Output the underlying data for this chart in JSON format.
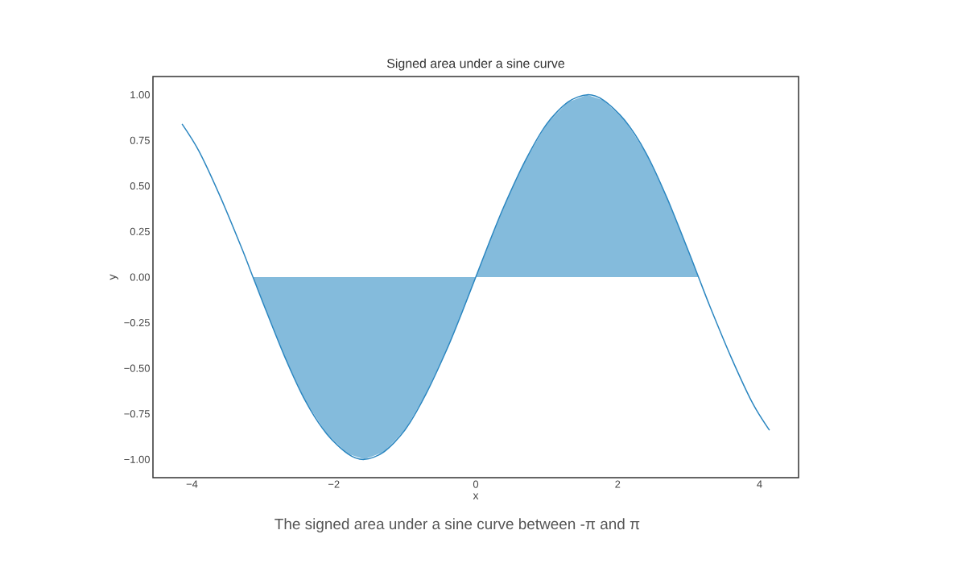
{
  "chart_data": {
    "type": "line",
    "title": "Signed area under a sine curve",
    "xlabel": "x",
    "ylabel": "y",
    "xlim": [
      -4.55,
      4.55
    ],
    "ylim": [
      -1.1,
      1.1
    ],
    "xticks": [
      {
        "value": -4,
        "label": "−4"
      },
      {
        "value": -2,
        "label": "−2"
      },
      0,
      2,
      4
    ],
    "yticks": [
      {
        "value": -1,
        "label": "−1.00"
      },
      {
        "value": -0.75,
        "label": "−0.75"
      },
      {
        "value": -0.5,
        "label": "−0.50"
      },
      {
        "value": -0.25,
        "label": "−0.25"
      },
      {
        "value": 0,
        "label": "0.00"
      },
      {
        "value": 0.25,
        "label": "0.25"
      },
      {
        "value": 0.5,
        "label": "0.50"
      },
      {
        "value": 0.75,
        "label": "0.75"
      },
      {
        "value": 1,
        "label": "1.00"
      }
    ],
    "grid": false,
    "annotations": [
      "The signed area under a sine curve between -π and π"
    ],
    "series": [
      {
        "type": "area",
        "color": "#84bbdc",
        "x": [
          -3.14,
          -3.0,
          -2.7,
          -2.4,
          -2.1,
          -1.8,
          -1.57,
          -1.3,
          -1.0,
          -0.7,
          -0.4,
          -0.2,
          0,
          0.2,
          0.4,
          0.7,
          1.0,
          1.3,
          1.57,
          1.8,
          2.1,
          2.4,
          2.7,
          3.0,
          3.14
        ],
        "values": [
          0,
          -0.14,
          -0.43,
          -0.68,
          -0.86,
          -0.97,
          -1.0,
          -0.96,
          -0.84,
          -0.64,
          -0.39,
          -0.2,
          0,
          0.2,
          0.39,
          0.64,
          0.84,
          0.96,
          1.0,
          0.97,
          0.86,
          0.68,
          0.43,
          0.14,
          0
        ]
      },
      {
        "color": "#2b86c0",
        "x": [
          -4.14,
          -3.9,
          -3.6,
          -3.3,
          -3.14,
          -3.0,
          -2.7,
          -2.4,
          -2.1,
          -1.8,
          -1.57,
          -1.3,
          -1.0,
          -0.7,
          -0.4,
          -0.2,
          0,
          0.2,
          0.4,
          0.7,
          1.0,
          1.3,
          1.57,
          1.8,
          2.1,
          2.4,
          2.7,
          3.0,
          3.14,
          3.3,
          3.6,
          3.9,
          4.14
        ],
        "values": [
          0.84,
          0.69,
          0.44,
          0.16,
          0,
          -0.14,
          -0.43,
          -0.68,
          -0.86,
          -0.97,
          -1.0,
          -0.96,
          -0.84,
          -0.64,
          -0.39,
          -0.2,
          0,
          0.2,
          0.39,
          0.64,
          0.84,
          0.96,
          1.0,
          0.97,
          0.86,
          0.68,
          0.43,
          0.14,
          0,
          -0.16,
          -0.44,
          -0.69,
          -0.84
        ]
      }
    ]
  }
}
